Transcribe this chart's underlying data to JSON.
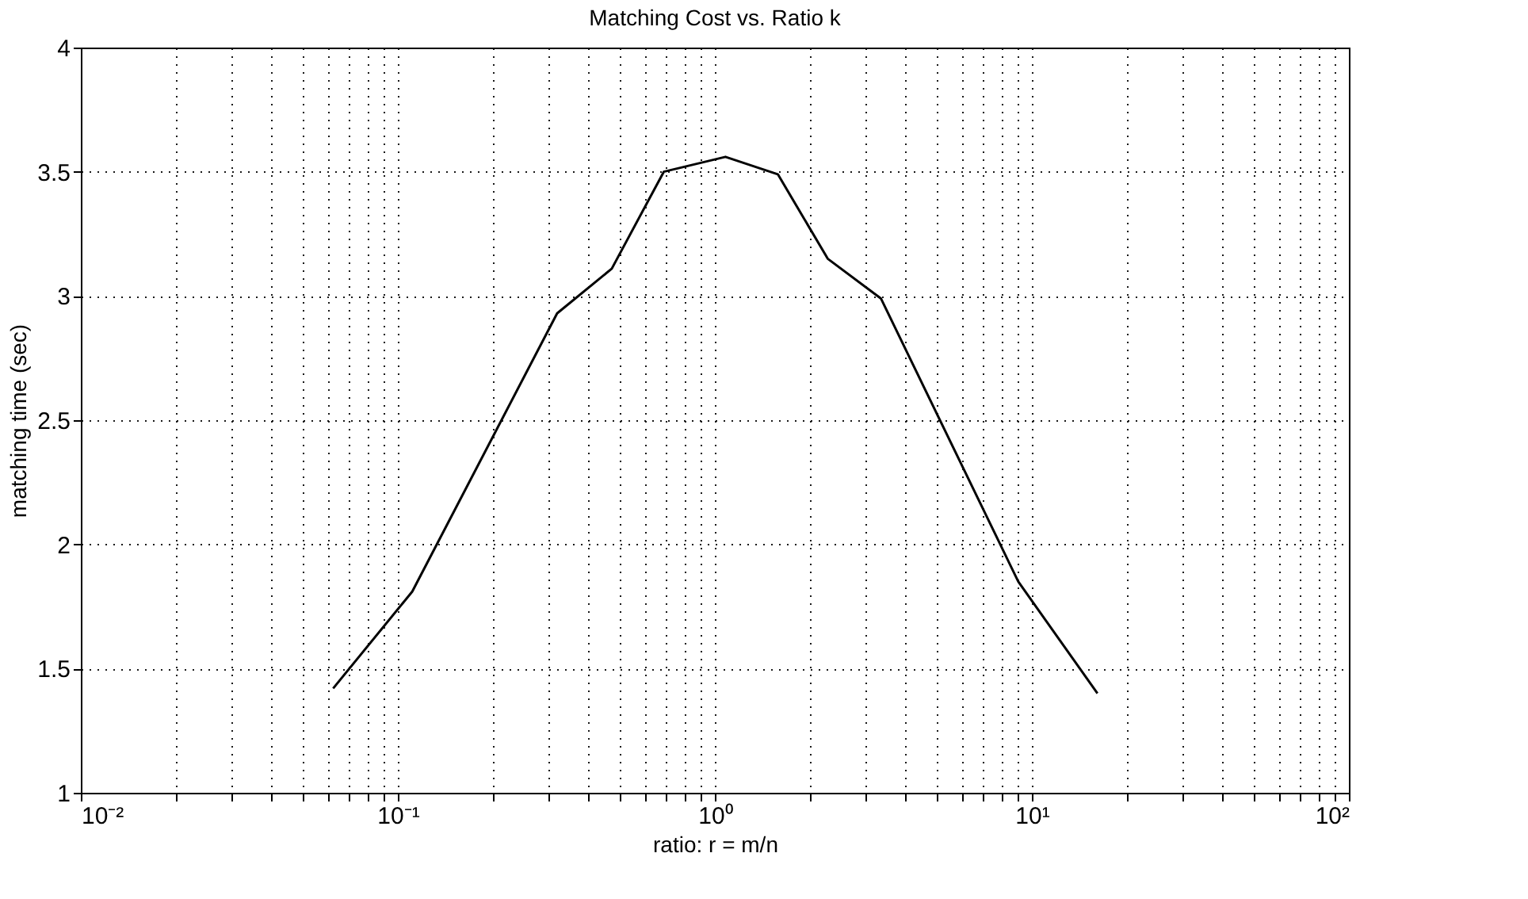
{
  "chart_data": {
    "type": "line",
    "title": "Matching Cost vs. Ratio k",
    "xlabel": "ratio: r = m/n",
    "ylabel": "matching time (sec)",
    "x": [
      0.0625,
      0.111,
      0.318,
      0.473,
      0.69,
      1.08,
      1.58,
      2.27,
      3.34,
      9.06,
      16.1
    ],
    "series": [
      {
        "color": "#000000",
        "values": [
          1.42,
          1.81,
          2.93,
          3.11,
          3.5,
          3.56,
          3.49,
          3.15,
          2.99,
          1.85,
          1.4
        ]
      }
    ],
    "log": "x",
    "xlim": [
      0.01,
      100
    ],
    "ylim": [
      1,
      4
    ],
    "xticks": [
      {
        "value": 0.01,
        "label": "10⁻²"
      },
      {
        "value": 0.02,
        "label": null
      },
      {
        "value": 0.03,
        "label": null
      },
      {
        "value": 0.04,
        "label": null
      },
      {
        "value": 0.05,
        "label": null
      },
      {
        "value": 0.06,
        "label": null
      },
      {
        "value": 0.07,
        "label": null
      },
      {
        "value": 0.08,
        "label": null
      },
      {
        "value": 0.09,
        "label": null
      },
      {
        "value": 0.1,
        "label": "10⁻¹"
      },
      {
        "value": 0.2,
        "label": null
      },
      {
        "value": 0.3,
        "label": null
      },
      {
        "value": 0.4,
        "label": null
      },
      {
        "value": 0.5,
        "label": null
      },
      {
        "value": 0.6,
        "label": null
      },
      {
        "value": 0.7,
        "label": null
      },
      {
        "value": 0.8,
        "label": null
      },
      {
        "value": 0.9,
        "label": null
      },
      {
        "value": 1,
        "label": "10⁰"
      },
      {
        "value": 2,
        "label": null
      },
      {
        "value": 3,
        "label": null
      },
      {
        "value": 4,
        "label": null
      },
      {
        "value": 5,
        "label": null
      },
      {
        "value": 6,
        "label": null
      },
      {
        "value": 7,
        "label": null
      },
      {
        "value": 8,
        "label": null
      },
      {
        "value": 9,
        "label": null
      },
      {
        "value": 10,
        "label": "10¹"
      },
      {
        "value": 20,
        "label": null
      },
      {
        "value": 30,
        "label": null
      },
      {
        "value": 40,
        "label": null
      },
      {
        "value": 50,
        "label": null
      },
      {
        "value": 60,
        "label": null
      },
      {
        "value": 70,
        "label": null
      },
      {
        "value": 80,
        "label": null
      },
      {
        "value": 90,
        "label": null
      },
      {
        "value": 100,
        "label": "10²"
      }
    ],
    "yticks": [
      1,
      1.5,
      2,
      2.5,
      3,
      3.5,
      4
    ],
    "grid": true,
    "marker": "none",
    "line_style": "solid"
  }
}
